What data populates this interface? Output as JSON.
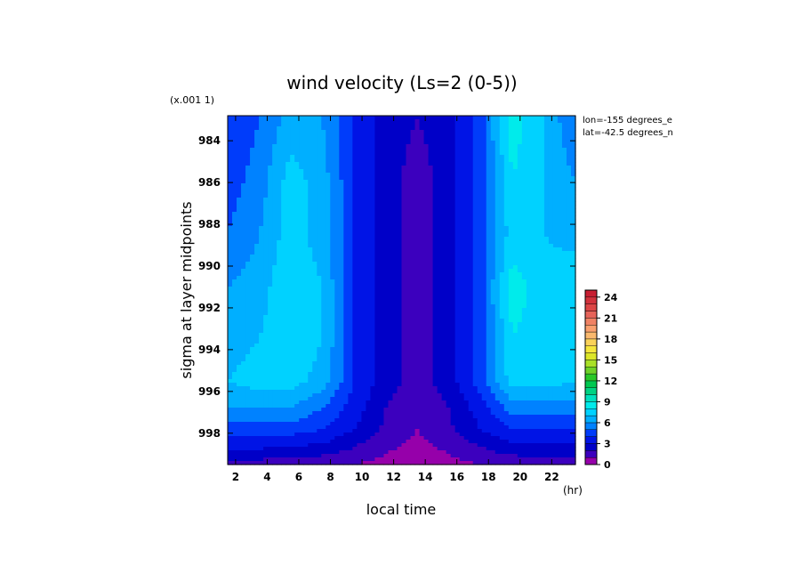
{
  "chart_data": {
    "type": "heatmap",
    "title": "wind velocity (Ls=2 (0-5))",
    "xlabel": "local time",
    "ylabel": "sigma at layer midpoints",
    "x_unit": "(hr)",
    "y_scale_note": "(x.001 1)",
    "info": [
      "lon=-155 degrees_e",
      "lat=-42.5 degrees_n"
    ],
    "xlim": [
      1.5,
      23.5
    ],
    "ylim": [
      999.5,
      982.8
    ],
    "x_ticks": [
      "2",
      "4",
      "6",
      "8",
      "10",
      "12",
      "14",
      "16",
      "18",
      "20",
      "22"
    ],
    "y_ticks": [
      "984",
      "986",
      "988",
      "990",
      "992",
      "994",
      "996",
      "998"
    ],
    "colorbar": {
      "range": [
        0,
        25
      ],
      "tick_labels": [
        "0",
        "3",
        "6",
        "9",
        "12",
        "15",
        "18",
        "21",
        "24"
      ]
    },
    "x": [
      1.5,
      3.5,
      5.5,
      7.5,
      9.5,
      11.5,
      13.5,
      15.5,
      17.5,
      19.5,
      21.5,
      23.5
    ],
    "y": [
      983.0,
      986.0,
      988.5,
      991.0,
      993.5,
      995.5,
      996.8,
      997.8,
      998.5,
      999.0,
      999.5
    ],
    "z": [
      [
        4.0,
        5.0,
        6.5,
        6.0,
        4.0,
        2.5,
        2.0,
        2.5,
        4.5,
        8.5,
        7.0,
        5.0
      ],
      [
        4.5,
        5.5,
        7.5,
        6.5,
        4.0,
        2.5,
        1.5,
        2.5,
        4.5,
        8.0,
        7.0,
        6.0
      ],
      [
        5.0,
        6.0,
        7.5,
        6.5,
        4.0,
        2.5,
        1.5,
        2.5,
        4.5,
        7.5,
        7.0,
        6.5
      ],
      [
        6.0,
        6.5,
        8.0,
        7.0,
        4.0,
        2.5,
        1.5,
        2.5,
        4.5,
        8.5,
        7.5,
        8.0
      ],
      [
        6.5,
        7.0,
        8.0,
        7.0,
        4.0,
        2.5,
        1.5,
        2.5,
        4.5,
        8.0,
        7.5,
        7.5
      ],
      [
        7.0,
        7.5,
        7.5,
        6.5,
        4.0,
        2.5,
        1.5,
        2.5,
        4.5,
        7.5,
        7.5,
        7.0
      ],
      [
        6.0,
        6.0,
        6.0,
        5.0,
        3.5,
        2.0,
        1.2,
        2.0,
        3.5,
        5.5,
        5.5,
        5.5
      ],
      [
        4.5,
        4.5,
        4.5,
        4.0,
        3.0,
        1.8,
        1.0,
        1.8,
        3.0,
        4.0,
        4.0,
        4.0
      ],
      [
        3.5,
        3.5,
        3.3,
        3.0,
        2.2,
        1.3,
        0.8,
        1.3,
        2.2,
        3.0,
        3.0,
        3.0
      ],
      [
        2.5,
        2.5,
        2.3,
        2.1,
        1.6,
        1.0,
        0.6,
        1.0,
        1.6,
        2.1,
        2.2,
        2.2
      ],
      [
        1.5,
        1.5,
        1.4,
        1.3,
        1.0,
        0.7,
        0.4,
        0.7,
        1.0,
        1.3,
        1.3,
        1.3
      ]
    ]
  }
}
